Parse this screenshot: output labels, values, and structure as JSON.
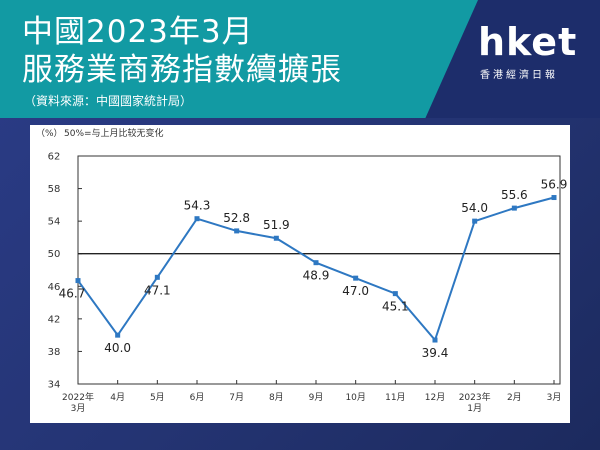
{
  "header": {
    "title_line1": "中國2023年3月",
    "title_line2": "服務業商務指數續擴張",
    "source": "（資料來源：中國國家統計局）"
  },
  "logo": {
    "name": "hket",
    "subtitle": "香港經濟日報"
  },
  "colors": {
    "header_teal": "#129aa3",
    "background_navy": "#243473",
    "line": "#2e78c2"
  },
  "chart_data": {
    "type": "line",
    "unit_label": "（%）",
    "note": "50%=与上月比较无变化",
    "categories": [
      [
        "2022年",
        "3月"
      ],
      [
        "4月"
      ],
      [
        "5月"
      ],
      [
        "6月"
      ],
      [
        "7月"
      ],
      [
        "8月"
      ],
      [
        "9月"
      ],
      [
        "10月"
      ],
      [
        "11月"
      ],
      [
        "12月"
      ],
      [
        "2023年",
        "1月"
      ],
      [
        "2月"
      ],
      [
        "3月"
      ]
    ],
    "values": [
      46.7,
      40.0,
      47.1,
      54.3,
      52.8,
      51.9,
      48.9,
      47.0,
      45.1,
      39.4,
      54.0,
      55.6,
      56.9
    ],
    "value_labels": [
      "46.7",
      "40.0",
      "47.1",
      "54.3",
      "52.8",
      "51.9",
      "48.9",
      "47.0",
      "45.1",
      "39.4",
      "54.0",
      "55.6",
      "56.9"
    ],
    "ylim": [
      34,
      62
    ],
    "yticks": [
      34,
      38,
      42,
      46,
      50,
      54,
      58,
      62
    ],
    "reference_line": 50,
    "grid": false,
    "legend": "none"
  }
}
